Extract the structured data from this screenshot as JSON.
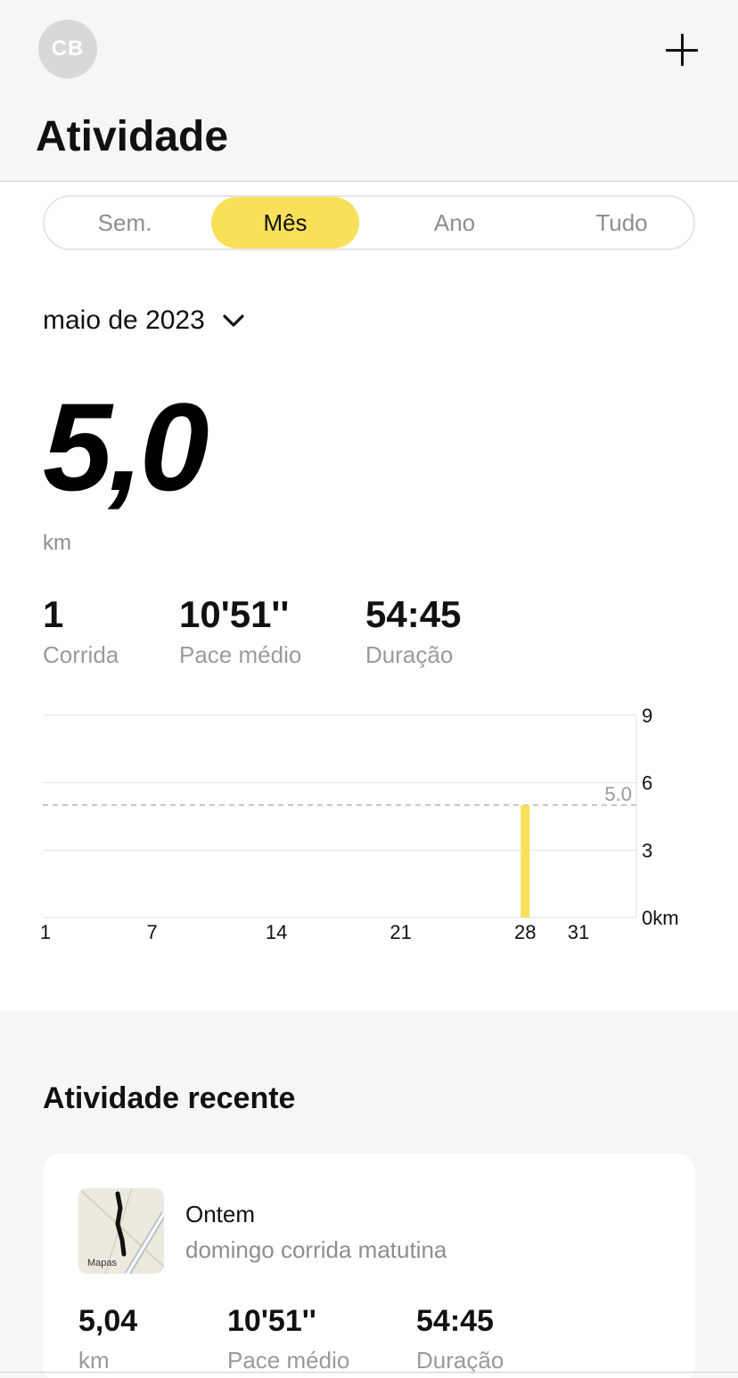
{
  "header": {
    "avatar_initials": "CB",
    "add_icon": "plus-icon",
    "title": "Atividade"
  },
  "tabs": [
    {
      "label": "Sem.",
      "active": false
    },
    {
      "label": "Mês",
      "active": true
    },
    {
      "label": "Ano",
      "active": false
    },
    {
      "label": "Tudo",
      "active": false
    }
  ],
  "period": {
    "label": "maio de 2023",
    "icon": "chevron-down-icon"
  },
  "summary": {
    "distance": "5,0",
    "unit": "km",
    "stats": [
      {
        "value": "1",
        "label": "Corrida"
      },
      {
        "value": "10'51''",
        "label": "Pace médio"
      },
      {
        "value": "54:45",
        "label": "Duração"
      }
    ]
  },
  "colors": {
    "accent": "#f8e05a",
    "muted_text": "#8e8e8e",
    "section_bg": "#f6f6f6"
  },
  "chart_data": {
    "type": "bar",
    "x_ticks": [
      "1",
      "7",
      "14",
      "21",
      "28",
      "31"
    ],
    "y_ticks": [
      "0km",
      "3",
      "6",
      "9"
    ],
    "ylim": [
      0,
      9
    ],
    "xlim": [
      1,
      31
    ],
    "bars": [
      {
        "day": 28,
        "value": 5.0
      }
    ],
    "reference_line": {
      "value": 5.0,
      "label": "5.0",
      "style": "dashed"
    },
    "grid": true
  },
  "recent": {
    "title": "Atividade recente",
    "items": [
      {
        "when": "Ontem",
        "name": "domingo corrida matutina",
        "map_caption": "Mapas",
        "stats": [
          {
            "value": "5,04",
            "label": "km"
          },
          {
            "value": "10'51''",
            "label": "Pace médio"
          },
          {
            "value": "54:45",
            "label": "Duração"
          }
        ]
      }
    ]
  }
}
